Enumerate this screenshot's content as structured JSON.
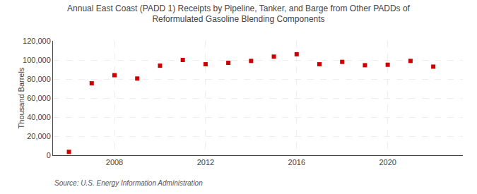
{
  "chart_data": {
    "type": "scatter",
    "title": "Annual East Coast (PADD 1) Receipts by Pipeline, Tanker, and Barge from Other PADDs of\nReformulated Gasoline Blending Components",
    "ylabel": "Thousand Barrels",
    "annotations": [
      "Source: U.S. Energy Information Administration"
    ],
    "x": [
      2006,
      2007,
      2008,
      2009,
      2010,
      2011,
      2012,
      2013,
      2014,
      2015,
      2016,
      2017,
      2018,
      2019,
      2020,
      2021,
      2022
    ],
    "values": [
      3500,
      75500,
      84000,
      80500,
      94000,
      100000,
      95500,
      97000,
      99000,
      103500,
      106000,
      95500,
      98000,
      94500,
      95000,
      99000,
      93000
    ],
    "color": "#cc0000",
    "marker": "square",
    "xlim": [
      2005.3,
      2023.3
    ],
    "xticks": [
      2008,
      2012,
      2016,
      2020
    ],
    "ylim": [
      0,
      120000
    ],
    "yticks": [
      0,
      {
        "value": 20000,
        "label": "20,000"
      },
      {
        "value": 40000,
        "label": "40,000"
      },
      {
        "value": 60000,
        "label": "60,000"
      },
      {
        "value": 80000,
        "label": "80,000"
      },
      {
        "value": 100000,
        "label": "100,000"
      },
      {
        "value": 120000,
        "label": "120,000"
      }
    ],
    "grid": true
  }
}
